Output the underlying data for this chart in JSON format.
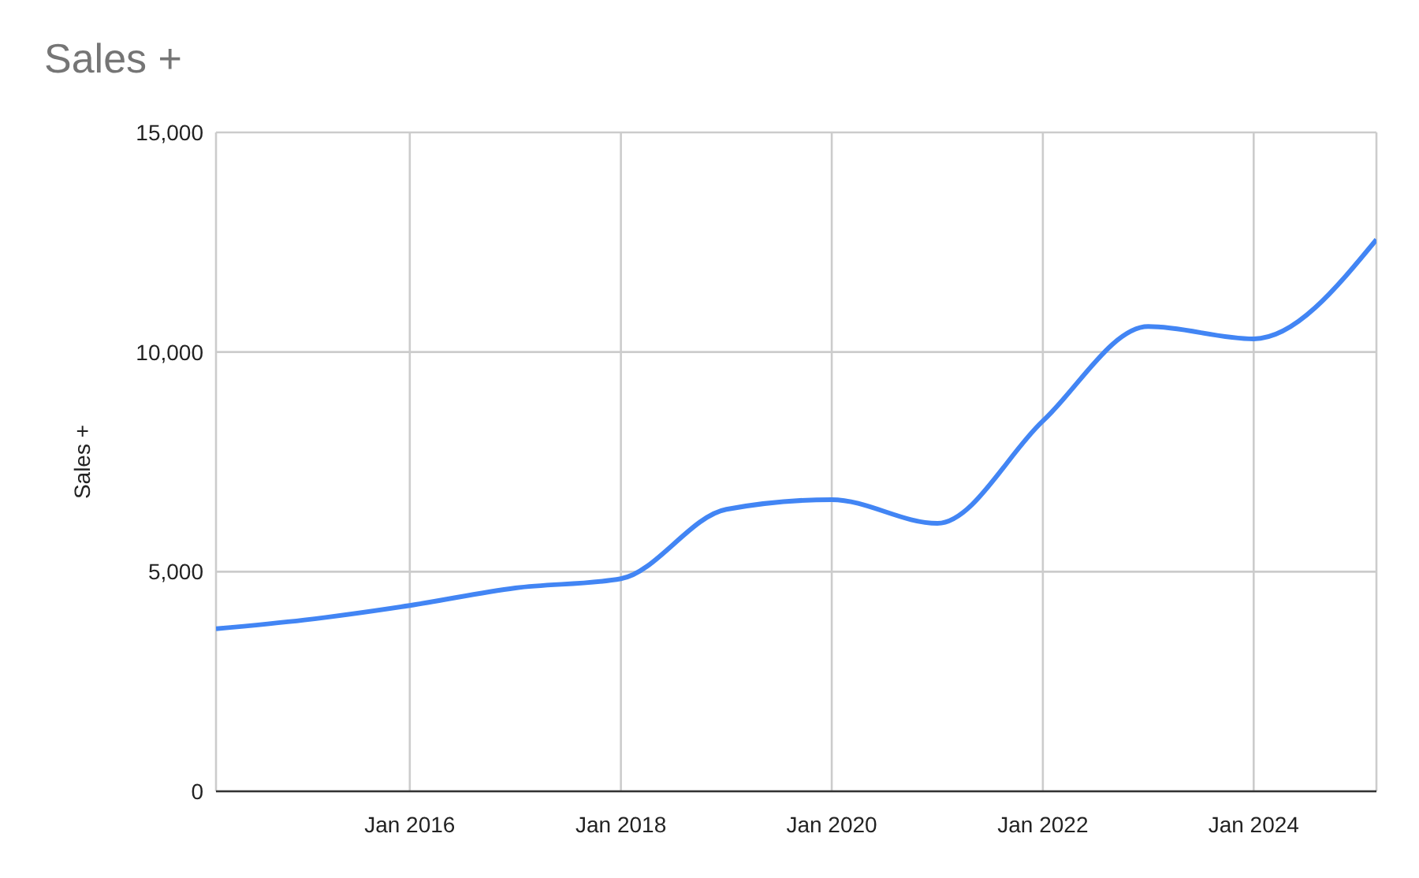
{
  "chart_data": {
    "type": "line",
    "title": "Sales +",
    "ylabel": "Sales +",
    "x": [
      "2014-03",
      "2015-01",
      "2016-01",
      "2017-01",
      "2018-01",
      "2019-01",
      "2020-01",
      "2021-01",
      "2022-01",
      "2023-01",
      "2024-01",
      "2025-03"
    ],
    "series": [
      {
        "color": "#4285f4",
        "values": [
          3700,
          3900,
          4230,
          4630,
          4840,
          6420,
          6640,
          6100,
          8430,
          10580,
          10300,
          12560
        ]
      }
    ],
    "xlim": [
      "2014-03",
      "2025-03"
    ],
    "xticks": [
      {
        "value": "2016-01",
        "label": "Jan 2016"
      },
      {
        "value": "2018-01",
        "label": "Jan 2018"
      },
      {
        "value": "2020-01",
        "label": "Jan 2020"
      },
      {
        "value": "2022-01",
        "label": "Jan 2022"
      },
      {
        "value": "2024-01",
        "label": "Jan 2024"
      }
    ],
    "ylim": [
      0,
      15000
    ],
    "yticks": [
      0,
      {
        "value": 5000,
        "label": "5,000"
      },
      {
        "value": 10000,
        "label": "10,000"
      },
      {
        "value": 15000,
        "label": "15,000"
      }
    ],
    "grid": true,
    "legend": false,
    "marker": "none",
    "line_style": "solid"
  }
}
